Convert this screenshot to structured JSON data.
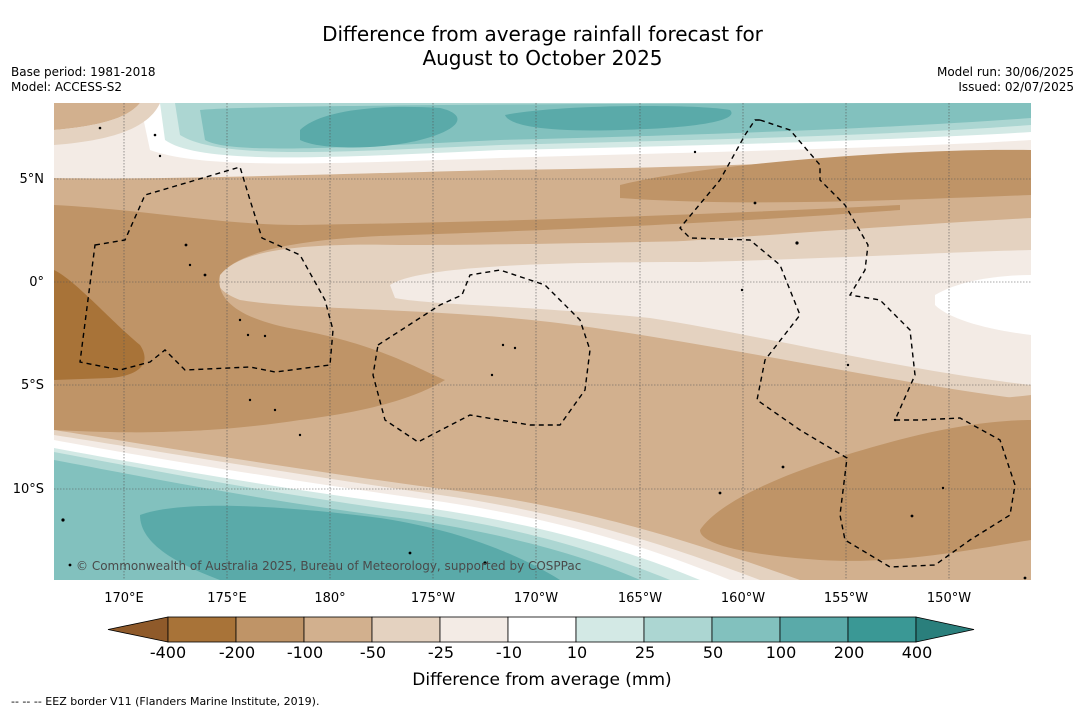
{
  "title_line1": "Difference from average rainfall forecast for",
  "title_line2": "August to October 2025",
  "base_period": "Base period: 1981-2018",
  "model": "Model: ACCESS-S2",
  "model_run": "Model run: 30/06/2025",
  "issued": "Issued: 02/07/2025",
  "copyright": "© Commonwealth of Australia 2025, Bureau of Meteorology, supported by COSPPac",
  "lat_ticks": [
    "5°N",
    "0°",
    "5°S",
    "10°S"
  ],
  "lon_ticks": [
    "170°E",
    "175°E",
    "180°",
    "175°W",
    "170°W",
    "165°W",
    "160°W",
    "155°W",
    "150°W"
  ],
  "colorbar": {
    "title": "Difference from average (mm)",
    "labels": [
      "-400",
      "-200",
      "-100",
      "-50",
      "-25",
      "-10",
      "10",
      "25",
      "50",
      "100",
      "200",
      "400"
    ],
    "colors": [
      "#8f5a2a",
      "#a87338",
      "#bf9467",
      "#d2b08e",
      "#e4d2c0",
      "#f3ebe5",
      "#ffffff",
      "#d3e9e5",
      "#acd6d2",
      "#82c1be",
      "#5aaaa9",
      "#3a9895",
      "#2a7f7c"
    ]
  },
  "footer": "--  --  -- EEZ border V11 (Flanders Marine Institute, 2019)."
}
